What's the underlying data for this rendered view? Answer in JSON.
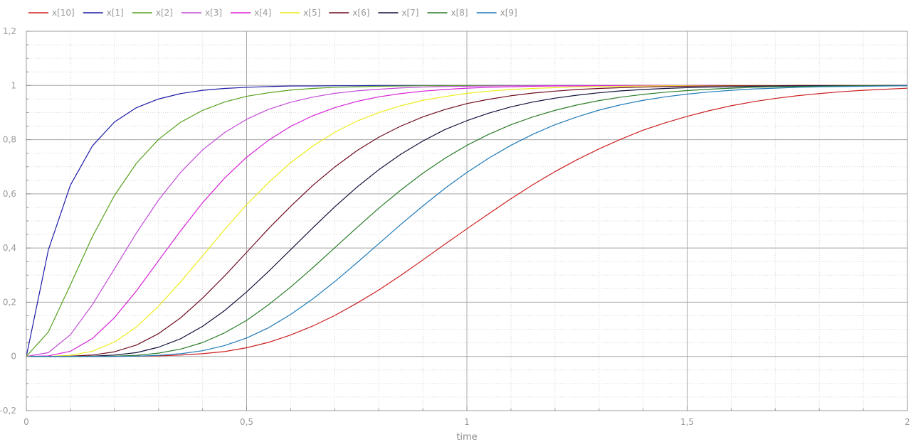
{
  "chart_data": {
    "type": "line",
    "title": "",
    "xlabel": "time",
    "ylabel": "",
    "xlim": [
      0,
      2
    ],
    "ylim": [
      -0.2,
      1.2
    ],
    "x_ticks": [
      0,
      0.5,
      1,
      1.5,
      2
    ],
    "x_tick_labels": [
      "0",
      "0,5",
      "1",
      "1,5",
      "2"
    ],
    "y_ticks": [
      -0.2,
      0,
      0.2,
      0.4,
      0.6,
      0.8,
      1,
      1.2
    ],
    "y_tick_labels": [
      "-0,2",
      "0",
      "0,2",
      "0,4",
      "0,6",
      "0,8",
      "1",
      "1,2"
    ],
    "grid": true,
    "legend_position": "top",
    "x": [
      0,
      0.05,
      0.1,
      0.15,
      0.2,
      0.25,
      0.3,
      0.35,
      0.4,
      0.45,
      0.5,
      0.55,
      0.6,
      0.65,
      0.7,
      0.75,
      0.8,
      0.85,
      0.9,
      0.95,
      1.0,
      1.05,
      1.1,
      1.15,
      1.2,
      1.25,
      1.3,
      1.35,
      1.4,
      1.45,
      1.5,
      1.55,
      1.6,
      1.65,
      1.7,
      1.75,
      1.8,
      1.85,
      1.9,
      1.95,
      2.0
    ],
    "series": [
      {
        "name": "x[10]",
        "color": "#cc1f1f",
        "values": [
          0,
          0,
          0,
          0,
          0,
          0.001,
          0.002,
          0.005,
          0.01,
          0.018,
          0.032,
          0.052,
          0.079,
          0.112,
          0.151,
          0.196,
          0.245,
          0.299,
          0.356,
          0.414,
          0.471,
          0.527,
          0.582,
          0.634,
          0.682,
          0.726,
          0.766,
          0.802,
          0.835,
          0.862,
          0.886,
          0.907,
          0.925,
          0.94,
          0.952,
          0.962,
          0.97,
          0.977,
          0.982,
          0.986,
          0.99
        ]
      },
      {
        "name": "x[1]",
        "color": "#1a1aa6",
        "values": [
          0,
          0.393,
          0.632,
          0.777,
          0.865,
          0.918,
          0.95,
          0.97,
          0.982,
          0.989,
          0.993,
          0.996,
          0.998,
          0.998,
          0.999,
          0.999,
          1,
          1,
          1,
          1,
          1,
          1,
          1,
          1,
          1,
          1,
          1,
          1,
          1,
          1,
          1,
          1,
          1,
          1,
          1,
          1,
          1,
          1,
          1,
          1,
          1
        ]
      },
      {
        "name": "x[2]",
        "color": "#55a01b",
        "values": [
          0,
          0.09,
          0.264,
          0.442,
          0.594,
          0.713,
          0.801,
          0.864,
          0.908,
          0.939,
          0.96,
          0.973,
          0.983,
          0.989,
          0.993,
          0.995,
          0.997,
          0.998,
          0.999,
          0.999,
          1,
          1,
          1,
          1,
          1,
          1,
          1,
          1,
          1,
          1,
          1,
          1,
          1,
          1,
          1,
          1,
          1,
          1,
          1,
          1,
          1
        ]
      },
      {
        "name": "x[3]",
        "color": "#c14bd6",
        "values": [
          0,
          0.014,
          0.08,
          0.191,
          0.323,
          0.456,
          0.577,
          0.679,
          0.762,
          0.826,
          0.875,
          0.912,
          0.938,
          0.957,
          0.971,
          0.98,
          0.986,
          0.991,
          0.994,
          0.996,
          0.997,
          0.998,
          0.999,
          0.999,
          1,
          1,
          1,
          1,
          1,
          1,
          1,
          1,
          1,
          1,
          1,
          1,
          1,
          1,
          1,
          1,
          1
        ]
      },
      {
        "name": "x[4]",
        "color": "#d81fd8",
        "values": [
          0,
          0.002,
          0.019,
          0.066,
          0.143,
          0.242,
          0.353,
          0.463,
          0.567,
          0.658,
          0.735,
          0.798,
          0.849,
          0.888,
          0.918,
          0.941,
          0.958,
          0.97,
          0.979,
          0.985,
          0.99,
          0.993,
          0.995,
          0.997,
          0.998,
          0.998,
          0.999,
          0.999,
          1,
          1,
          1,
          1,
          1,
          1,
          1,
          1,
          1,
          1,
          1,
          1,
          1
        ]
      },
      {
        "name": "x[5]",
        "color": "#ecec1a",
        "values": [
          0,
          0,
          0.004,
          0.019,
          0.053,
          0.109,
          0.185,
          0.275,
          0.371,
          0.468,
          0.56,
          0.642,
          0.715,
          0.776,
          0.827,
          0.868,
          0.9,
          0.925,
          0.945,
          0.959,
          0.971,
          0.979,
          0.985,
          0.989,
          0.992,
          0.995,
          0.996,
          0.997,
          0.998,
          0.999,
          0.999,
          0.999,
          1,
          1,
          1,
          1,
          1,
          1,
          1,
          1,
          1
        ]
      },
      {
        "name": "x[6]",
        "color": "#6e0d1e",
        "values": [
          0,
          0,
          0.001,
          0.005,
          0.017,
          0.042,
          0.084,
          0.142,
          0.215,
          0.297,
          0.384,
          0.472,
          0.554,
          0.631,
          0.699,
          0.759,
          0.809,
          0.85,
          0.884,
          0.911,
          0.933,
          0.949,
          0.962,
          0.972,
          0.979,
          0.985,
          0.989,
          0.992,
          0.994,
          0.996,
          0.997,
          0.998,
          0.999,
          0.999,
          0.999,
          1,
          1,
          1,
          1,
          1,
          1
        ]
      },
      {
        "name": "x[7]",
        "color": "#10103a",
        "values": [
          0,
          0,
          0,
          0.001,
          0.005,
          0.014,
          0.034,
          0.065,
          0.111,
          0.169,
          0.238,
          0.314,
          0.394,
          0.474,
          0.552,
          0.624,
          0.689,
          0.746,
          0.795,
          0.837,
          0.87,
          0.898,
          0.921,
          0.939,
          0.953,
          0.964,
          0.973,
          0.98,
          0.985,
          0.989,
          0.992,
          0.994,
          0.995,
          0.997,
          0.998,
          0.998,
          0.999,
          0.999,
          0.999,
          1,
          1
        ]
      },
      {
        "name": "x[8]",
        "color": "#2a7d2a",
        "values": [
          0,
          0,
          0,
          0,
          0.001,
          0.004,
          0.012,
          0.027,
          0.051,
          0.087,
          0.133,
          0.191,
          0.256,
          0.327,
          0.401,
          0.475,
          0.547,
          0.614,
          0.676,
          0.731,
          0.779,
          0.82,
          0.855,
          0.884,
          0.908,
          0.928,
          0.944,
          0.957,
          0.967,
          0.975,
          0.981,
          0.986,
          0.99,
          0.993,
          0.995,
          0.996,
          0.997,
          0.998,
          0.999,
          0.999,
          0.999
        ]
      },
      {
        "name": "x[9]",
        "color": "#1f7ab8",
        "values": [
          0,
          0,
          0,
          0,
          0,
          0.001,
          0.004,
          0.01,
          0.021,
          0.04,
          0.068,
          0.106,
          0.155,
          0.212,
          0.276,
          0.345,
          0.416,
          0.487,
          0.555,
          0.62,
          0.679,
          0.732,
          0.779,
          0.82,
          0.855,
          0.884,
          0.909,
          0.929,
          0.945,
          0.958,
          0.968,
          0.976,
          0.982,
          0.987,
          0.99,
          0.993,
          0.995,
          0.996,
          0.997,
          0.998,
          0.999
        ]
      }
    ]
  }
}
